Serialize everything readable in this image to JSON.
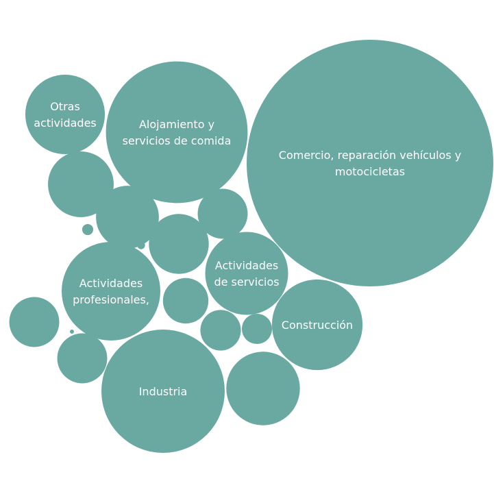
{
  "chart_data": {
    "type": "packed-bubble",
    "color": "#69a9a2",
    "label_color": "#ffffff",
    "bubbles": [
      {
        "label": [
          "Comercio, reparación vehículos y",
          "motocicletas"
        ],
        "value": 100
      },
      {
        "label": [
          "Alojamiento y",
          "servicios de comida"
        ],
        "value": 33
      },
      {
        "label": [
          "Industria"
        ],
        "value": 25
      },
      {
        "label": [
          "Actividades",
          "profesionales,"
        ],
        "value": 16
      },
      {
        "label": [
          "Construcción"
        ],
        "value": 13.5
      },
      {
        "label": [
          "Otras",
          "actividades"
        ],
        "value": 10.4
      },
      {
        "label": [
          "Actividades",
          "de servicios"
        ],
        "value": 11.3
      },
      {
        "label": [],
        "value": 8.9
      },
      {
        "label": [],
        "value": 7.1
      },
      {
        "label": [],
        "value": 6.5
      },
      {
        "label": [],
        "value": 5.9
      },
      {
        "label": [],
        "value": 4.1
      },
      {
        "label": [],
        "value": 4.1
      },
      {
        "label": [],
        "value": 4.1
      },
      {
        "label": [],
        "value": 3.4
      },
      {
        "label": [],
        "value": 2.7
      },
      {
        "label": [],
        "value": 1.5
      },
      {
        "label": [],
        "value": 0.2
      },
      {
        "label": [],
        "value": 0.1
      },
      {
        "label": [],
        "value": 0.02
      }
    ]
  }
}
